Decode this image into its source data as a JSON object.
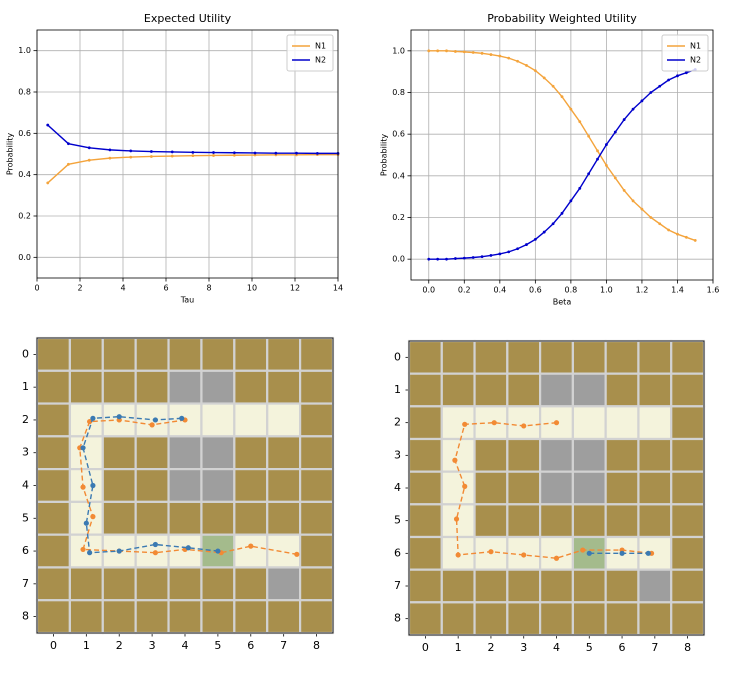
{
  "chart_data": [
    {
      "type": "line",
      "title": "Expected Utility",
      "xlabel": "Tau",
      "ylabel": "Probability",
      "x": [
        0.5,
        1.46,
        2.43,
        3.39,
        4.36,
        5.32,
        6.29,
        7.25,
        8.21,
        9.18,
        10.14,
        11.11,
        12.07,
        13.04,
        14.0
      ],
      "series": [
        {
          "name": "N1",
          "color": "#f4a43c",
          "values": [
            0.36,
            0.45,
            0.47,
            0.48,
            0.485,
            0.488,
            0.49,
            0.492,
            0.493,
            0.494,
            0.495,
            0.496,
            0.496,
            0.497,
            0.497
          ]
        },
        {
          "name": "N2",
          "color": "#0000cc",
          "values": [
            0.64,
            0.55,
            0.53,
            0.52,
            0.515,
            0.512,
            0.51,
            0.508,
            0.507,
            0.506,
            0.505,
            0.504,
            0.504,
            0.503,
            0.503
          ]
        }
      ],
      "xlim": [
        0,
        14
      ],
      "xticks": [
        0,
        2,
        4,
        6,
        8,
        10,
        12,
        14
      ],
      "ylim": [
        -0.1,
        1.1
      ],
      "yticks": [
        {
          "value": 0,
          "label": "0.0"
        },
        0.2,
        0.4,
        0.6,
        0.8,
        {
          "value": 1,
          "label": "1.0"
        }
      ],
      "grid": true,
      "legend": "upper right"
    },
    {
      "type": "line",
      "title": "Probability Weighted Utility",
      "xlabel": "Beta",
      "ylabel": "Probability",
      "x": [
        0,
        0.05,
        0.1,
        0.15,
        0.2,
        0.25,
        0.3,
        0.35,
        0.4,
        0.45,
        0.5,
        0.55,
        0.6,
        0.65,
        0.7,
        0.75,
        0.8,
        0.85,
        0.9,
        0.95,
        1.0,
        1.05,
        1.1,
        1.15,
        1.2,
        1.25,
        1.3,
        1.35,
        1.4,
        1.45,
        1.5
      ],
      "series": [
        {
          "name": "N1",
          "color": "#f4a43c",
          "values": [
            1.0,
            1.0,
            1.0,
            0.997,
            0.995,
            0.992,
            0.988,
            0.982,
            0.975,
            0.965,
            0.95,
            0.93,
            0.905,
            0.87,
            0.83,
            0.78,
            0.72,
            0.66,
            0.59,
            0.52,
            0.45,
            0.39,
            0.33,
            0.28,
            0.24,
            0.2,
            0.17,
            0.14,
            0.12,
            0.105,
            0.09
          ]
        },
        {
          "name": "N2",
          "color": "#0000cc",
          "values": [
            0.0,
            0.0,
            0.0,
            0.003,
            0.005,
            0.008,
            0.012,
            0.018,
            0.025,
            0.035,
            0.05,
            0.07,
            0.095,
            0.13,
            0.17,
            0.22,
            0.28,
            0.34,
            0.41,
            0.48,
            0.55,
            0.61,
            0.67,
            0.72,
            0.76,
            0.8,
            0.83,
            0.86,
            0.88,
            0.895,
            0.91
          ]
        }
      ],
      "xlim": [
        -0.1,
        1.6
      ],
      "xticks": [
        {
          "value": 0,
          "label": "0.0"
        },
        0.2,
        0.4,
        0.6,
        0.8,
        {
          "value": 1,
          "label": "1.0"
        },
        1.2,
        1.4,
        1.6
      ],
      "ylim": [
        -0.1,
        1.1
      ],
      "yticks": [
        {
          "value": 0,
          "label": "0.0"
        },
        0.2,
        0.4,
        0.6,
        0.8,
        {
          "value": 1,
          "label": "1.0"
        }
      ],
      "grid": true,
      "legend": "upper right"
    },
    {
      "type": "gridworld",
      "cells": [
        [
          "#a88f4c",
          "#a88f4c",
          "#a88f4c",
          "#a88f4c",
          "#a88f4c",
          "#a88f4c",
          "#a88f4c",
          "#a88f4c",
          "#a88f4c"
        ],
        [
          "#a88f4c",
          "#a88f4c",
          "#a88f4c",
          "#a88f4c",
          "#9e9e9e",
          "#9e9e9e",
          "#a88f4c",
          "#a88f4c",
          "#a88f4c"
        ],
        [
          "#a88f4c",
          "#f4f3dc",
          "#f4f3dc",
          "#f4f3dc",
          "#f4f3dc",
          "#f4f3dc",
          "#f4f3dc",
          "#f4f3dc",
          "#a88f4c"
        ],
        [
          "#a88f4c",
          "#f4f3dc",
          "#a88f4c",
          "#a88f4c",
          "#9e9e9e",
          "#9e9e9e",
          "#a88f4c",
          "#a88f4c",
          "#a88f4c"
        ],
        [
          "#a88f4c",
          "#f4f3dc",
          "#a88f4c",
          "#a88f4c",
          "#9e9e9e",
          "#9e9e9e",
          "#a88f4c",
          "#a88f4c",
          "#a88f4c"
        ],
        [
          "#a88f4c",
          "#f4f3dc",
          "#a88f4c",
          "#a88f4c",
          "#a88f4c",
          "#a88f4c",
          "#a88f4c",
          "#a88f4c",
          "#a88f4c"
        ],
        [
          "#a88f4c",
          "#f4f3dc",
          "#f4f3dc",
          "#f4f3dc",
          "#f4f3dc",
          "#a4bb8c",
          "#f4f3dc",
          "#f4f3dc",
          "#a88f4c"
        ],
        [
          "#a88f4c",
          "#a88f4c",
          "#a88f4c",
          "#a88f4c",
          "#a88f4c",
          "#a88f4c",
          "#a88f4c",
          "#9e9e9e",
          "#a88f4c"
        ],
        [
          "#a88f4c",
          "#a88f4c",
          "#a88f4c",
          "#a88f4c",
          "#a88f4c",
          "#a88f4c",
          "#a88f4c",
          "#a88f4c",
          "#a88f4c"
        ]
      ],
      "series": [
        {
          "color": "#f28a34",
          "x": [
            4,
            3.0,
            2,
            1.1,
            0.8,
            0.9,
            1.2,
            0.9,
            2,
            3.1,
            4,
            5.1,
            6,
            7.4
          ],
          "values": [
            2.0,
            2.15,
            2.0,
            2.05,
            2.85,
            4.05,
            4.95,
            5.95,
            6.0,
            6.05,
            5.95,
            6.05,
            5.85,
            6.1
          ]
        },
        {
          "color": "#3b7ab2",
          "x": [
            3.9,
            3.1,
            2.0,
            1.2,
            0.9,
            1.2,
            1.0,
            1.1,
            2.0,
            3.1,
            4.1,
            5.0
          ],
          "values": [
            1.95,
            2.0,
            1.9,
            1.95,
            2.85,
            4.0,
            5.15,
            6.05,
            6.0,
            5.8,
            5.9,
            6.0
          ]
        }
      ],
      "xlim": [
        -0.5,
        8.5
      ],
      "xticks": [
        0,
        1,
        2,
        3,
        4,
        5,
        6,
        7,
        8
      ],
      "ylim": [
        8.5,
        -0.5
      ],
      "yticks": [
        0,
        1,
        2,
        3,
        4,
        5,
        6,
        7,
        8
      ]
    },
    {
      "type": "gridworld",
      "cells": [
        [
          "#a88f4c",
          "#a88f4c",
          "#a88f4c",
          "#a88f4c",
          "#a88f4c",
          "#a88f4c",
          "#a88f4c",
          "#a88f4c",
          "#a88f4c"
        ],
        [
          "#a88f4c",
          "#a88f4c",
          "#a88f4c",
          "#a88f4c",
          "#9e9e9e",
          "#9e9e9e",
          "#a88f4c",
          "#a88f4c",
          "#a88f4c"
        ],
        [
          "#a88f4c",
          "#f4f3dc",
          "#f4f3dc",
          "#f4f3dc",
          "#f4f3dc",
          "#f4f3dc",
          "#f4f3dc",
          "#f4f3dc",
          "#a88f4c"
        ],
        [
          "#a88f4c",
          "#f4f3dc",
          "#a88f4c",
          "#a88f4c",
          "#9e9e9e",
          "#9e9e9e",
          "#a88f4c",
          "#a88f4c",
          "#a88f4c"
        ],
        [
          "#a88f4c",
          "#f4f3dc",
          "#a88f4c",
          "#a88f4c",
          "#9e9e9e",
          "#9e9e9e",
          "#a88f4c",
          "#a88f4c",
          "#a88f4c"
        ],
        [
          "#a88f4c",
          "#f4f3dc",
          "#a88f4c",
          "#a88f4c",
          "#a88f4c",
          "#a88f4c",
          "#a88f4c",
          "#a88f4c",
          "#a88f4c"
        ],
        [
          "#a88f4c",
          "#f4f3dc",
          "#f4f3dc",
          "#f4f3dc",
          "#f4f3dc",
          "#a4bb8c",
          "#f4f3dc",
          "#f4f3dc",
          "#a88f4c"
        ],
        [
          "#a88f4c",
          "#a88f4c",
          "#a88f4c",
          "#a88f4c",
          "#a88f4c",
          "#a88f4c",
          "#a88f4c",
          "#9e9e9e",
          "#a88f4c"
        ],
        [
          "#a88f4c",
          "#a88f4c",
          "#a88f4c",
          "#a88f4c",
          "#a88f4c",
          "#a88f4c",
          "#a88f4c",
          "#a88f4c",
          "#a88f4c"
        ]
      ],
      "series": [
        {
          "color": "#f28a34",
          "x": [
            4,
            3,
            2.1,
            1.2,
            0.9,
            1.2,
            0.95,
            1,
            2,
            3,
            4,
            4.8,
            6,
            6.9
          ],
          "values": [
            2.0,
            2.1,
            2.0,
            2.05,
            3.15,
            3.95,
            4.95,
            6.05,
            5.95,
            6.05,
            6.15,
            5.9,
            5.9,
            6.0
          ]
        },
        {
          "color": "#3b7ab2",
          "x": [
            5.0,
            6.0,
            6.8
          ],
          "values": [
            6.0,
            6.0,
            6.0
          ]
        }
      ],
      "xlim": [
        -0.5,
        8.5
      ],
      "xticks": [
        0,
        1,
        2,
        3,
        4,
        5,
        6,
        7,
        8
      ],
      "ylim": [
        8.5,
        -0.5
      ],
      "yticks": [
        0,
        1,
        2,
        3,
        4,
        5,
        6,
        7,
        8
      ]
    }
  ]
}
